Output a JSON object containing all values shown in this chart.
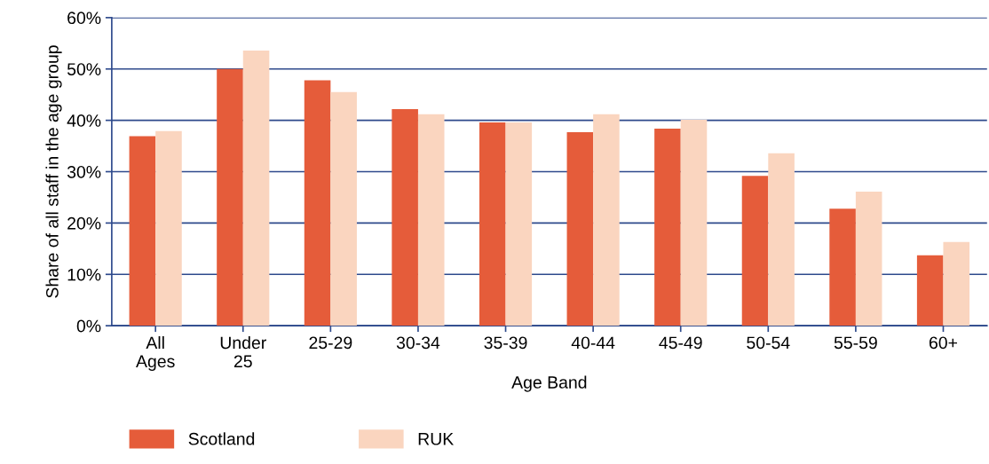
{
  "chart_data": {
    "type": "bar",
    "xlabel": "Age Band",
    "ylabel": "Share of all staff in the age group",
    "categories": [
      "All\nAges",
      "Under\n25",
      "25-29",
      "30-34",
      "35-39",
      "40-44",
      "45-49",
      "50-54",
      "55-59",
      "60+"
    ],
    "series": [
      {
        "name": "Scotland",
        "color": "#e55c3a",
        "values": [
          36.9,
          50.0,
          47.8,
          42.2,
          39.6,
          37.7,
          38.4,
          29.2,
          22.8,
          13.7
        ]
      },
      {
        "name": "RUK",
        "color": "#fad5bf",
        "values": [
          37.9,
          53.6,
          45.5,
          41.2,
          39.6,
          41.2,
          40.1,
          33.6,
          26.1,
          16.3
        ]
      }
    ],
    "ylim": [
      0,
      60
    ],
    "yticks": [
      {
        "value": 0,
        "label": "0%"
      },
      {
        "value": 10,
        "label": "10%"
      },
      {
        "value": 20,
        "label": "20%"
      },
      {
        "value": 30,
        "label": "30%"
      },
      {
        "value": 40,
        "label": "40%"
      },
      {
        "value": 50,
        "label": "50%"
      },
      {
        "value": 60,
        "label": "60%"
      }
    ],
    "grid": "y",
    "legend": "bottom left"
  }
}
